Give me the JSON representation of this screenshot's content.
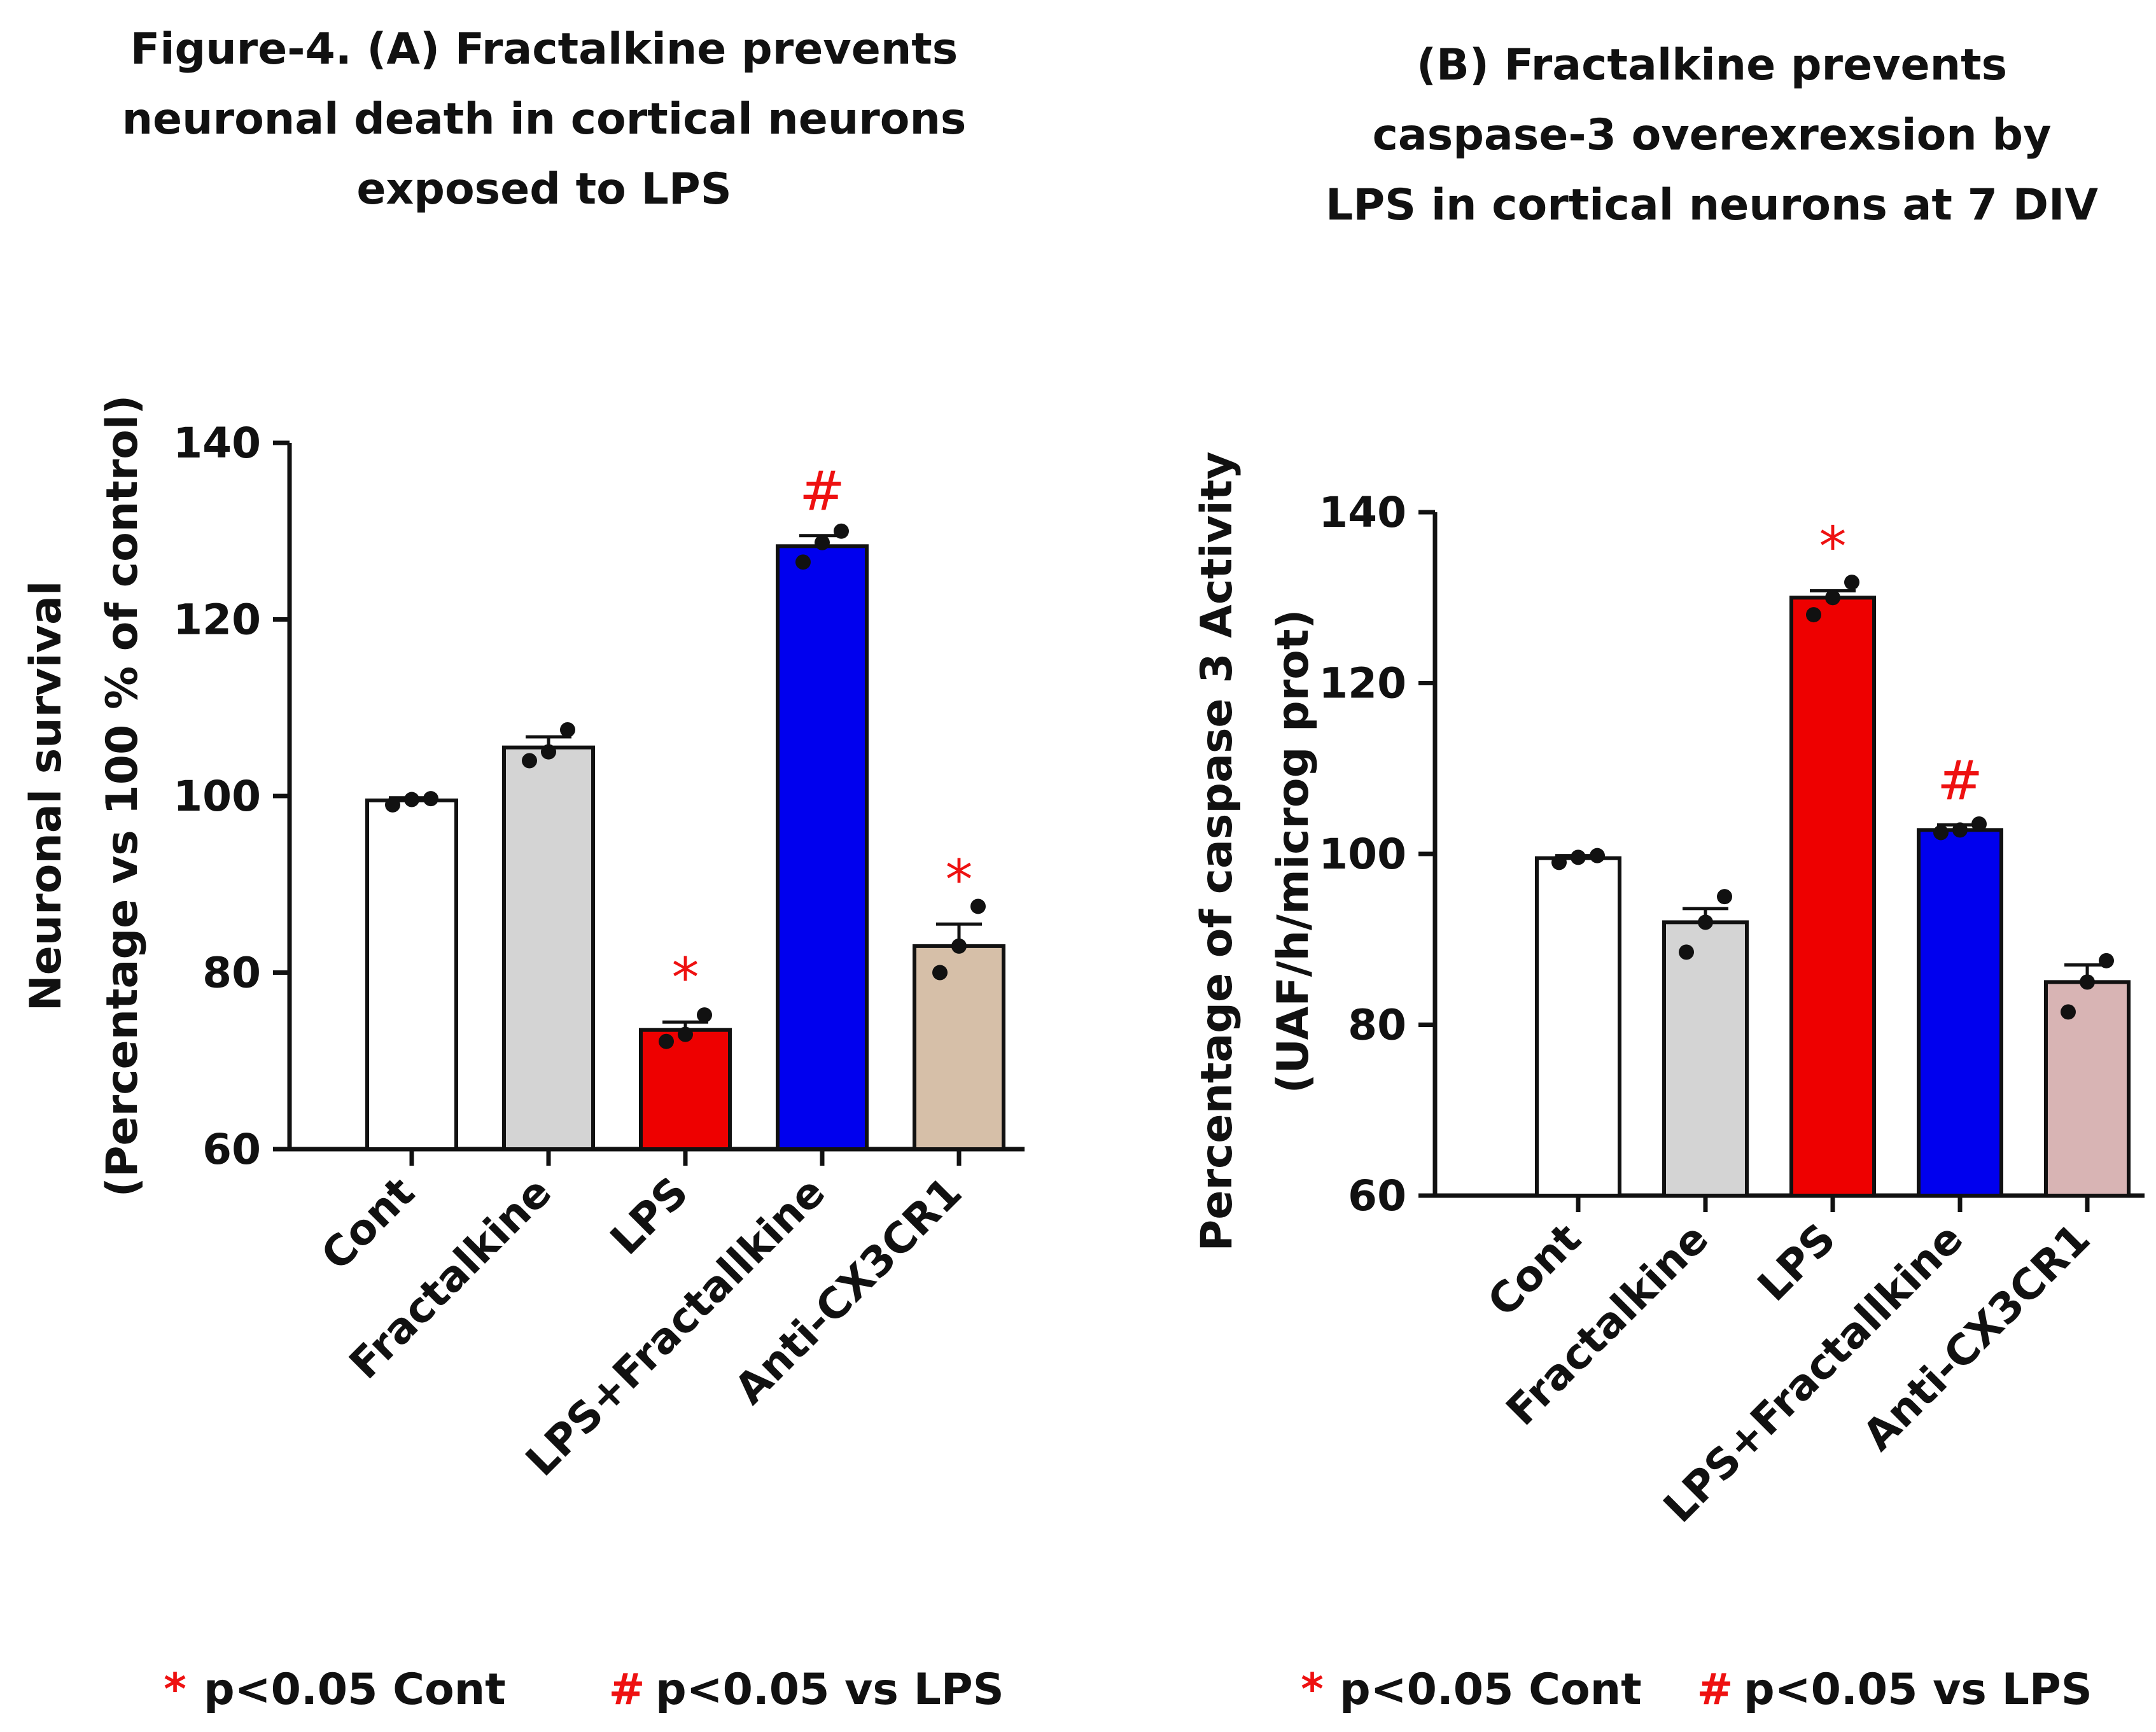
{
  "chart_data": [
    {
      "type": "bar",
      "panel": "A",
      "title_lines": [
        "Figure-4. (A) Fractalkine prevents",
        "neuronal death in cortical neurons",
        "exposed to LPS"
      ],
      "ylabel_lines": [
        "Neuronal survival",
        "(Percentage vs 100  % of control)"
      ],
      "xlabel": "",
      "ylim": [
        60,
        140
      ],
      "yticks": [
        "60",
        "80",
        "100",
        "120",
        "140"
      ],
      "categories": [
        "Cont",
        "Fractalkine",
        "LPS",
        "LPS+Fractallkine",
        "Anti-CX3CR1"
      ],
      "values": [
        99.5,
        105.5,
        73.5,
        128.3,
        83.0
      ],
      "errors": [
        0.3,
        1.2,
        0.9,
        1.2,
        2.5
      ],
      "points": [
        [
          99.0,
          99.6,
          99.7
        ],
        [
          104.0,
          105.0,
          107.5
        ],
        [
          72.2,
          73.0,
          75.2
        ],
        [
          126.5,
          128.7,
          130.0
        ],
        [
          80.0,
          83.0,
          87.5
        ]
      ],
      "colors": [
        "#ffffff",
        "#d4d4d4",
        "#ee0000",
        "#0000ee",
        "#d6bfa8"
      ],
      "significance": [
        "",
        "",
        "*",
        "#",
        "*"
      ],
      "legend": [
        {
          "symbol": "*",
          "text": "p<0.05 Cont"
        },
        {
          "symbol": "#",
          "text": "p<0.05 vs LPS"
        }
      ]
    },
    {
      "type": "bar",
      "panel": "B",
      "title_lines": [
        "(B) Fractalkine prevents",
        "caspase-3 overexrexsion by",
        "LPS in cortical neurons at 7 DIV"
      ],
      "ylabel_lines": [
        "Percentage of caspase 3 Activity",
        "(UAF/h/microg prot)"
      ],
      "xlabel": "",
      "ylim": [
        60,
        140
      ],
      "yticks": [
        "60",
        "80",
        "100",
        "120",
        "140"
      ],
      "categories": [
        "Cont",
        "Fractalkine",
        "LPS",
        "LPS+Fractallkine",
        "Anti-CX3CR1"
      ],
      "values": [
        99.5,
        92.0,
        130.0,
        102.8,
        85.0
      ],
      "errors": [
        0.3,
        1.6,
        0.8,
        0.6,
        2.0
      ],
      "points": [
        [
          99.0,
          99.6,
          99.8
        ],
        [
          88.5,
          92.0,
          95.0
        ],
        [
          128.0,
          130.0,
          131.8
        ],
        [
          102.5,
          102.8,
          103.5
        ],
        [
          81.5,
          85.0,
          87.5
        ]
      ],
      "colors": [
        "#ffffff",
        "#d4d4d4",
        "#ee0000",
        "#0000ee",
        "#d8b4b4"
      ],
      "significance": [
        "",
        "",
        "*",
        "#",
        ""
      ],
      "legend": [
        {
          "symbol": "*",
          "text": "p<0.05 Cont"
        },
        {
          "symbol": "#",
          "text": "p<0.05 vs LPS"
        }
      ]
    }
  ]
}
